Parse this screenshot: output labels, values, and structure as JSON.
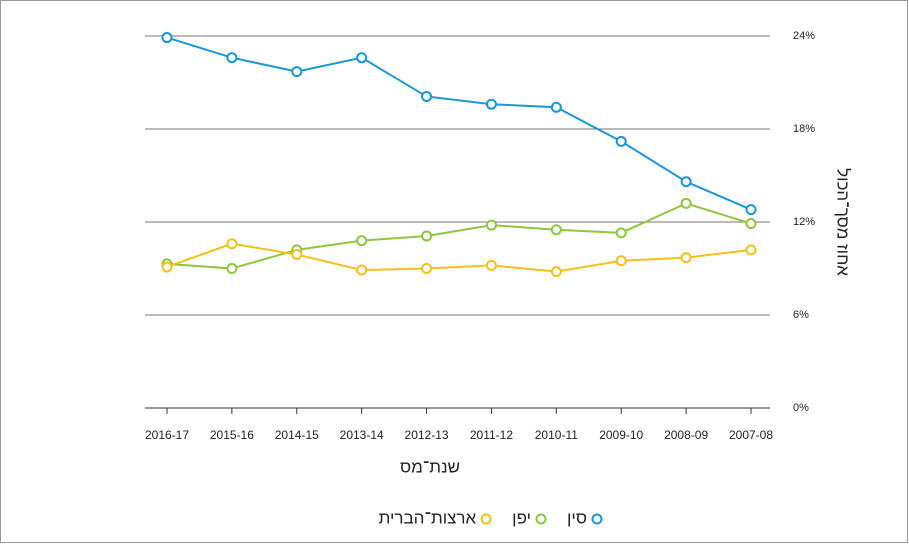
{
  "chart_data": {
    "type": "line",
    "xlabel": "שנת־מס",
    "ylabel": "אחוז מסך־הכול",
    "categories": [
      "2016-17",
      "2015-16",
      "2014-15",
      "2013-14",
      "2012-13",
      "2011-12",
      "2010-11",
      "2009-10",
      "2008-09",
      "2007-08"
    ],
    "series": [
      {
        "name": "סין",
        "color": "#1a97d5",
        "values": [
          23.9,
          22.6,
          21.7,
          22.6,
          20.1,
          19.6,
          19.4,
          17.2,
          14.6,
          12.8
        ]
      },
      {
        "name": "יפן",
        "color": "#8dc63f",
        "values": [
          9.3,
          9.0,
          10.2,
          10.8,
          11.1,
          11.8,
          11.5,
          11.3,
          13.2,
          11.9
        ]
      },
      {
        "name": "ארצות־הברית",
        "color": "#f5c018",
        "values": [
          9.1,
          10.6,
          9.9,
          8.9,
          9.0,
          9.2,
          8.8,
          9.5,
          9.7,
          10.2
        ]
      }
    ],
    "ylim": [
      0,
      24
    ],
    "yticks": [
      {
        "value": 0,
        "label": "0%"
      },
      {
        "value": 6,
        "label": "6%"
      },
      {
        "value": 12,
        "label": "12%"
      },
      {
        "value": 18,
        "label": "18%"
      },
      {
        "value": 24,
        "label": "24%"
      }
    ],
    "grid": true
  }
}
